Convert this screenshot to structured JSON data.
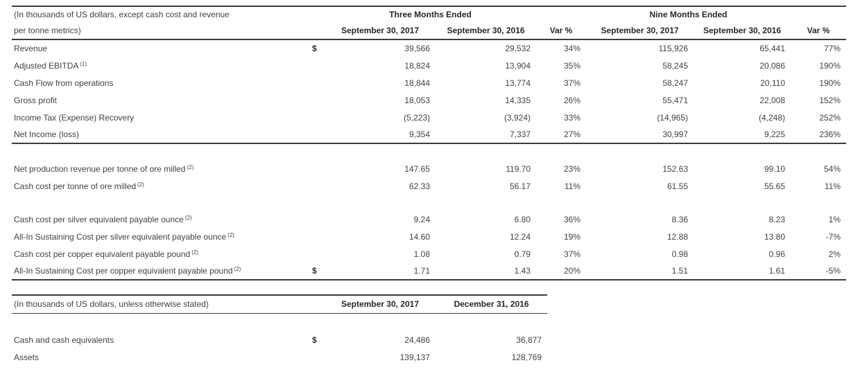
{
  "page": {
    "background_color": "#ffffff",
    "text_color": "#414141",
    "bold_text_color": "#272727",
    "rule_color": "#3c3c3c"
  },
  "table1": {
    "caption_line1": "(In thousands of US dollars, except cash cost and revenue",
    "caption_line2": "per tonne metrics)",
    "group_header_three_months": "Three Months Ended",
    "group_header_nine_months": "Nine Months Ended",
    "column_headers": [
      "September 30, 2017",
      "September 30, 2016",
      "Var %",
      "September 30, 2017",
      "September 30, 2016",
      "Var %"
    ],
    "sections": [
      {
        "rows": [
          {
            "label": "Revenue",
            "sup": "",
            "dollar": "$",
            "values": [
              "39,566",
              "29,532",
              "34%",
              "115,926",
              "65,441",
              "77%"
            ]
          },
          {
            "label": "Adjusted EBITDA",
            "sup": "(1)",
            "dollar": "",
            "values": [
              "18,824",
              "13,904",
              "35%",
              "58,245",
              "20,086",
              "190%"
            ]
          },
          {
            "label": "Cash Flow from operations",
            "sup": "",
            "dollar": "",
            "values": [
              "18,844",
              "13,774",
              "37%",
              "58,247",
              "20,110",
              "190%"
            ]
          },
          {
            "label": "Gross profit",
            "sup": "",
            "dollar": "",
            "values": [
              "18,053",
              "14,335",
              "26%",
              "55,471",
              "22,008",
              "152%"
            ]
          },
          {
            "label": "Income Tax (Expense) Recovery",
            "sup": "",
            "dollar": "",
            "values": [
              "(5,223)",
              "(3,924)",
              "33%",
              "(14,965)",
              "(4,248)",
              "252%"
            ]
          },
          {
            "label": "Net Income (loss)",
            "sup": "",
            "dollar": "",
            "values": [
              "9,354",
              "7,337",
              "27%",
              "30,997",
              "9,225",
              "236%"
            ]
          }
        ]
      },
      {
        "rows": [
          {
            "label": "Net production revenue per tonne of ore milled",
            "sup": "(2)",
            "dollar": "",
            "values": [
              "147.65",
              "119.70",
              "23%",
              "152.63",
              "99.10",
              "54%"
            ]
          },
          {
            "label": "Cash cost per tonne of ore milled",
            "sup": "(2)",
            "dollar": "",
            "values": [
              "62.33",
              "56.17",
              "11%",
              "61.55",
              "55.65",
              "11%"
            ]
          }
        ]
      },
      {
        "rows": [
          {
            "label": "Cash cost per silver equivalent payable ounce",
            "sup": "(2)",
            "dollar": "",
            "values": [
              "9.24",
              "6.80",
              "36%",
              "8.36",
              "8.23",
              "1%"
            ]
          },
          {
            "label": "All-In Sustaining Cost per silver equivalent payable ounce",
            "sup": "(2)",
            "dollar": "",
            "values": [
              "14.60",
              "12.24",
              "19%",
              "12.88",
              "13.80",
              "-7%"
            ]
          },
          {
            "label": "Cash cost per copper equivalent payable pound",
            "sup": "(2)",
            "dollar": "",
            "values": [
              "1.08",
              "0.79",
              "37%",
              "0.98",
              "0.96",
              "2%"
            ]
          },
          {
            "label": "All-In Sustaining Cost per copper equivalent payable pound",
            "sup": "(2)",
            "dollar": "$",
            "values": [
              "1.71",
              "1.43",
              "20%",
              "1.51",
              "1.61",
              "-5%"
            ]
          }
        ]
      }
    ]
  },
  "table2": {
    "caption": "(In thousands of US dollars, unless otherwise stated)",
    "column_headers": [
      "September 30, 2017",
      "December 31, 2016"
    ],
    "rows": [
      {
        "label": "Cash and cash equivalents",
        "sup": "",
        "dollar": "$",
        "values": [
          "24,486",
          "36,877"
        ]
      },
      {
        "label": "Assets",
        "sup": "",
        "dollar": "",
        "values": [
          "139,137",
          "128,769"
        ]
      }
    ]
  }
}
